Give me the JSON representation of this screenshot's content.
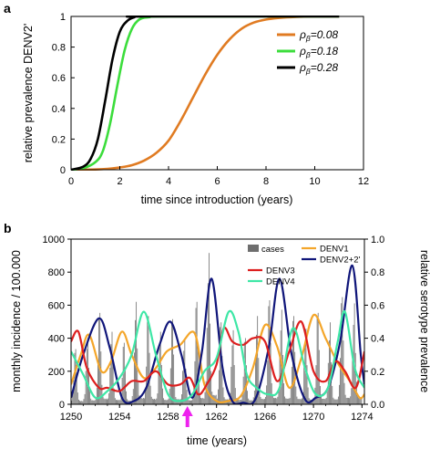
{
  "chart_data": [
    {
      "panel_label": "a",
      "type": "line",
      "xlabel": "time since introduction (years)",
      "ylabel": "relative prevalence DENV2'",
      "xlim": [
        0,
        12
      ],
      "ylim": [
        0,
        1
      ],
      "xticks": [
        "0",
        "2",
        "4",
        "6",
        "8",
        "10",
        "12"
      ],
      "yticks": [
        "0",
        "0.2",
        "0.4",
        "0.6",
        "0.8",
        "1"
      ],
      "grid": false,
      "legend_position": "right",
      "series": [
        {
          "name": "ρβ=0.08",
          "name_symbol": "ρ",
          "name_sub": "β",
          "name_suffix": "=0.08",
          "color": "#e07b22",
          "x": [
            0,
            1,
            1.5,
            2,
            2.5,
            3,
            3.5,
            4,
            4.5,
            5,
            5.5,
            6,
            6.5,
            7,
            7.5,
            8,
            8.5,
            9,
            10,
            11
          ],
          "y": [
            0,
            0.002,
            0.006,
            0.015,
            0.03,
            0.06,
            0.11,
            0.19,
            0.32,
            0.47,
            0.62,
            0.75,
            0.85,
            0.92,
            0.96,
            0.98,
            0.99,
            0.995,
            1.0,
            1.0
          ]
        },
        {
          "name": "ρβ=0.18",
          "name_symbol": "ρ",
          "name_sub": "β",
          "name_suffix": "=0.18",
          "color": "#3cdd3c",
          "x": [
            0,
            0.5,
            1,
            1.3,
            1.6,
            1.9,
            2.2,
            2.5,
            2.8,
            3.2,
            4,
            11
          ],
          "y": [
            0,
            0.01,
            0.05,
            0.12,
            0.3,
            0.55,
            0.78,
            0.92,
            0.98,
            0.995,
            1.0,
            1.0
          ]
        },
        {
          "name": "ρβ=0.28",
          "name_symbol": "ρ",
          "name_sub": "β",
          "name_suffix": "=0.28",
          "color": "#000000",
          "x": [
            0,
            0.5,
            0.8,
            1.1,
            1.4,
            1.7,
            2.0,
            2.3,
            2.6,
            3,
            11
          ],
          "y": [
            0,
            0.02,
            0.07,
            0.2,
            0.45,
            0.72,
            0.9,
            0.97,
            0.995,
            1.0,
            1.0
          ]
        }
      ]
    },
    {
      "panel_label": "b",
      "type": "bar+line",
      "xlabel": "time (years)",
      "ylabel_left": "monthly incidence / 100.000",
      "ylabel_right": "relative serotype prevalence",
      "xlim": [
        1250,
        1274.2
      ],
      "ylim_left": [
        0,
        1000
      ],
      "ylim_right": [
        0,
        1
      ],
      "xticks": [
        "1250",
        "1254",
        "1258",
        "1262",
        "1266",
        "1270",
        "1274"
      ],
      "yticks_left": [
        "0",
        "200",
        "400",
        "600",
        "800",
        "1000"
      ],
      "yticks_right": [
        "0.0",
        "0.2",
        "0.4",
        "0.6",
        "0.8",
        "1.0"
      ],
      "grid": false,
      "legend_position": "top-right",
      "marker": {
        "x": 1259.6,
        "color": "#ee22ee",
        "shape": "arrow"
      },
      "bars": {
        "name": "cases",
        "color": "#6e6e6e",
        "annual_peaks": [
          {
            "year": 1250.3,
            "value": 350
          },
          {
            "year": 1251.3,
            "value": 420
          },
          {
            "year": 1252.3,
            "value": 580
          },
          {
            "year": 1253.3,
            "value": 460
          },
          {
            "year": 1254.3,
            "value": 390
          },
          {
            "year": 1255.3,
            "value": 650
          },
          {
            "year": 1256.3,
            "value": 560
          },
          {
            "year": 1257.3,
            "value": 460
          },
          {
            "year": 1258.3,
            "value": 540
          },
          {
            "year": 1259.3,
            "value": 420
          },
          {
            "year": 1260.3,
            "value": 650
          },
          {
            "year": 1261.3,
            "value": 960
          },
          {
            "year": 1262.3,
            "value": 520
          },
          {
            "year": 1263.3,
            "value": 470
          },
          {
            "year": 1264.3,
            "value": 420
          },
          {
            "year": 1265.3,
            "value": 560
          },
          {
            "year": 1266.3,
            "value": 660
          },
          {
            "year": 1267.3,
            "value": 600
          },
          {
            "year": 1268.3,
            "value": 560
          },
          {
            "year": 1269.3,
            "value": 480
          },
          {
            "year": 1270.3,
            "value": 580
          },
          {
            "year": 1271.3,
            "value": 520
          },
          {
            "year": 1272.3,
            "value": 680
          },
          {
            "year": 1273.3,
            "value": 640
          }
        ]
      },
      "series": [
        {
          "name": "DENV1",
          "color": "#f4a62a",
          "x": [
            1250,
            1250.8,
            1251.5,
            1252.5,
            1253.3,
            1254.2,
            1255,
            1256,
            1257,
            1257.9,
            1259,
            1260.2,
            1261,
            1262,
            1263,
            1264,
            1265,
            1266,
            1267,
            1268,
            1269,
            1270,
            1271,
            1272,
            1273,
            1273.8,
            1274.2
          ],
          "y": [
            0.12,
            0.3,
            0.42,
            0.2,
            0.26,
            0.44,
            0.3,
            0.16,
            0.22,
            0.32,
            0.36,
            0.43,
            0.12,
            0.02,
            0.02,
            0.05,
            0.22,
            0.48,
            0.35,
            0.1,
            0.28,
            0.54,
            0.4,
            0.25,
            0.14,
            0.04,
            0.06
          ]
        },
        {
          "name": "DENV2+2'",
          "color": "#10167a",
          "x": [
            1250,
            1251,
            1252.3,
            1253.2,
            1254.2,
            1255.2,
            1256.2,
            1257.3,
            1258.2,
            1259.1,
            1260,
            1260.8,
            1261.6,
            1262.5,
            1263.3,
            1264.2,
            1265.2,
            1266.3,
            1267.2,
            1268.2,
            1269.3,
            1270.2,
            1271.2,
            1272.2,
            1273.2,
            1273.9,
            1274.2
          ],
          "y": [
            0.04,
            0.3,
            0.52,
            0.34,
            0.04,
            0.02,
            0.1,
            0.36,
            0.5,
            0.3,
            0.04,
            0.32,
            0.76,
            0.22,
            0.02,
            0.01,
            0.03,
            0.34,
            0.76,
            0.3,
            0.03,
            0.04,
            0.1,
            0.38,
            0.84,
            0.3,
            0.12
          ]
        },
        {
          "name": "DENV3",
          "color": "#dd1f1f",
          "x": [
            1250,
            1250.6,
            1251.3,
            1252.3,
            1253,
            1254,
            1255,
            1256,
            1257,
            1258,
            1259,
            1259.8,
            1260.5,
            1261.2,
            1262,
            1262.6,
            1263.3,
            1264.2,
            1265,
            1266,
            1267,
            1268,
            1269,
            1270,
            1271,
            1271.8,
            1272.6,
            1273.5,
            1274.2
          ],
          "y": [
            0.38,
            0.44,
            0.22,
            0.1,
            0.1,
            0.08,
            0.14,
            0.14,
            0.2,
            0.12,
            0.12,
            0.16,
            0.06,
            0.12,
            0.24,
            0.46,
            0.38,
            0.36,
            0.4,
            0.38,
            0.14,
            0.32,
            0.5,
            0.2,
            0.14,
            0.26,
            0.2,
            0.1,
            0.32
          ]
        },
        {
          "name": "DENV4",
          "color": "#3ee7a6",
          "x": [
            1250,
            1251,
            1252,
            1253,
            1254,
            1255,
            1256,
            1257,
            1258,
            1259,
            1260,
            1261,
            1262,
            1263,
            1263.8,
            1264.5,
            1265.3,
            1266.3,
            1267.2,
            1268.3,
            1269.3,
            1270.2,
            1271.2,
            1272,
            1272.6,
            1273.4,
            1274.2
          ],
          "y": [
            0.32,
            0.18,
            0.04,
            0.08,
            0.16,
            0.3,
            0.56,
            0.3,
            0.06,
            0.02,
            0.06,
            0.2,
            0.28,
            0.56,
            0.44,
            0.18,
            0.1,
            0.06,
            0.1,
            0.46,
            0.22,
            0.06,
            0.1,
            0.38,
            0.56,
            0.22,
            0.1
          ]
        }
      ]
    }
  ]
}
